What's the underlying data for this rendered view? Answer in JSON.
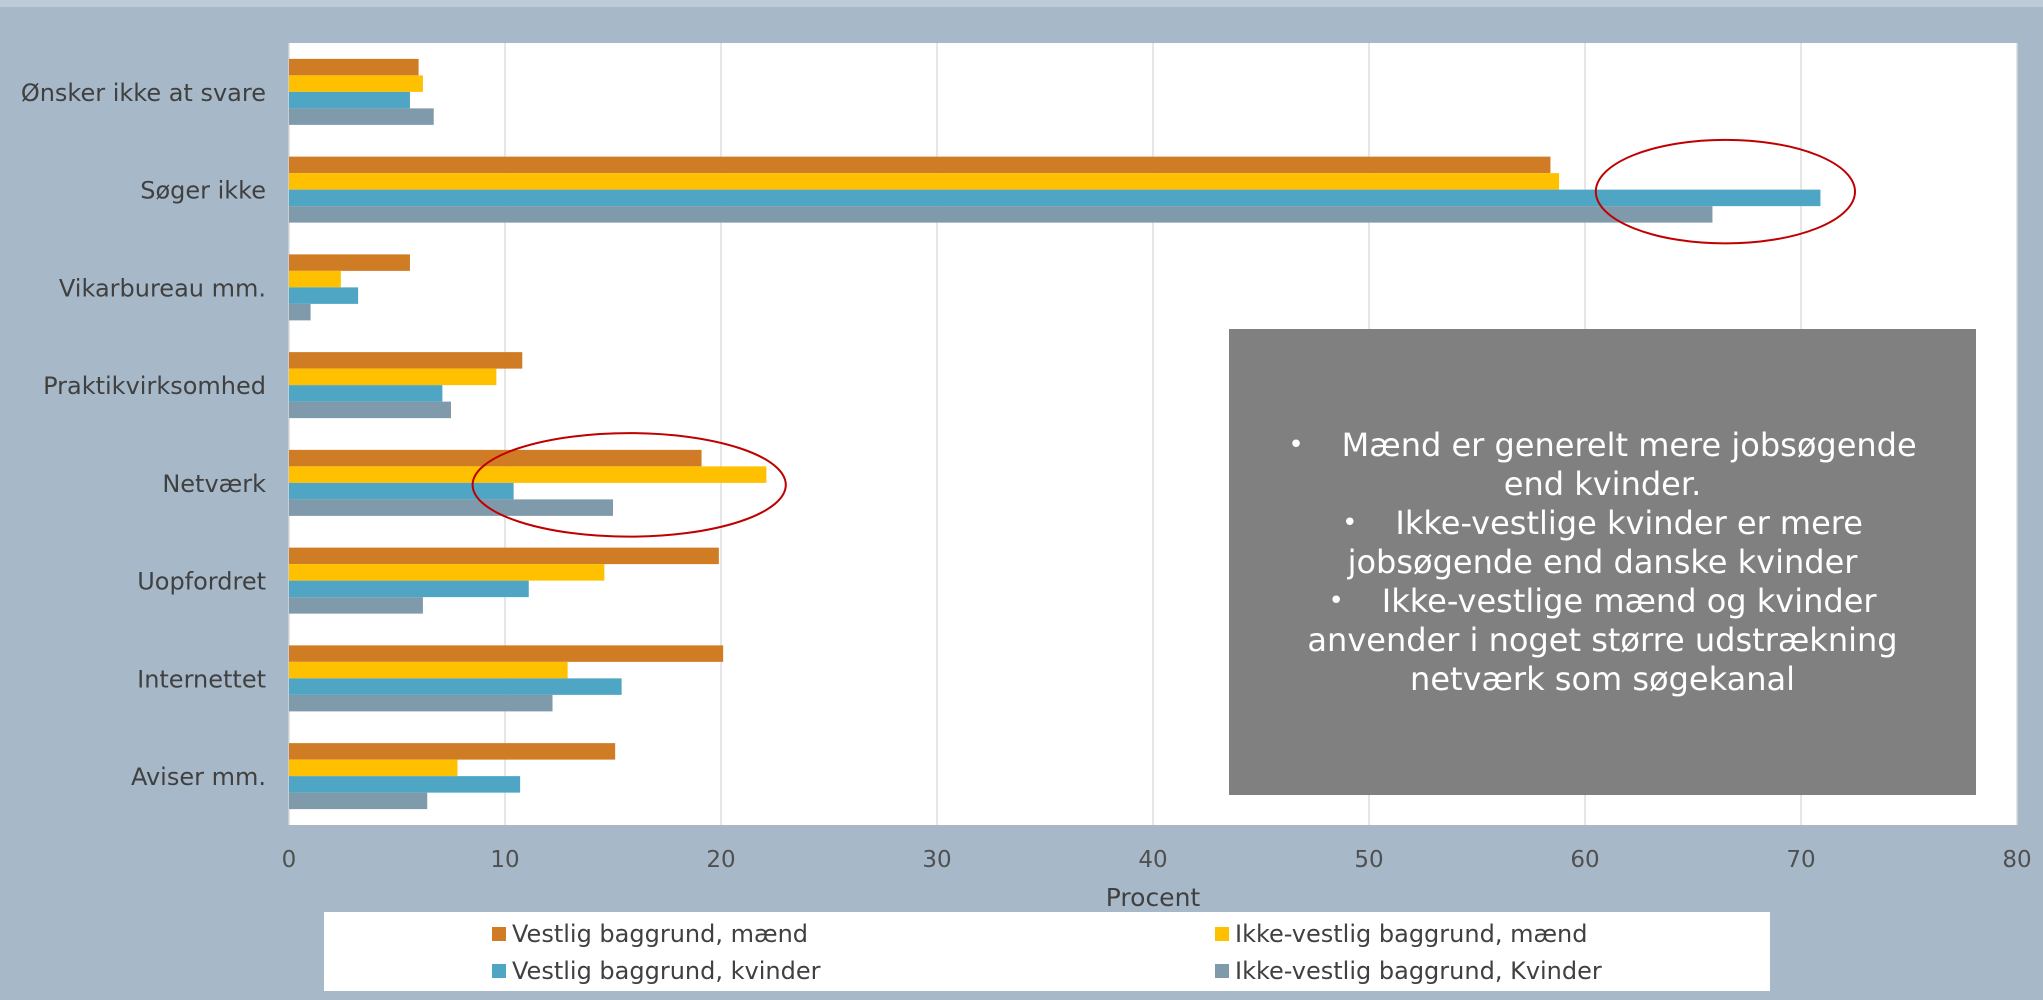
{
  "chart_data": {
    "type": "bar",
    "orientation": "horizontal",
    "categories": [
      "Ønsker ikke at svare",
      "Søger ikke",
      "Vikarbureau mm.",
      "Praktikvirksomhed",
      "Netværk",
      "Uopfordret",
      "Internettet",
      "Aviser mm."
    ],
    "series": [
      {
        "name": "Vestlig baggrund, mænd",
        "color": "#d07c24",
        "values": [
          6.0,
          58.4,
          5.6,
          10.8,
          19.1,
          19.9,
          20.1,
          15.1
        ]
      },
      {
        "name": "Ikke-vestlig baggrund, mænd",
        "color": "#ffc000",
        "values": [
          6.2,
          58.8,
          2.4,
          9.6,
          22.1,
          14.6,
          12.9,
          7.8
        ]
      },
      {
        "name": "Vestlig baggrund, kvinder",
        "color": "#4ea6c4",
        "values": [
          5.6,
          70.9,
          3.2,
          7.1,
          10.4,
          11.1,
          15.4,
          10.7
        ]
      },
      {
        "name": "Ikke-vestlig baggrund, Kvinder",
        "color": "#7f9aab",
        "values": [
          6.7,
          65.9,
          1.0,
          7.5,
          15.0,
          6.2,
          12.2,
          6.4
        ]
      }
    ],
    "x_ticks": [
      "0",
      "10",
      "20",
      "30",
      "40",
      "50",
      "60",
      "70",
      "80"
    ],
    "xlim": [
      0,
      80
    ],
    "xlabel": "Procent",
    "grid": true,
    "legend_position": "bottom",
    "annotations": {
      "ellipses": [
        {
          "target": "Søger ikke",
          "x_range": [
            60.5,
            72.5
          ],
          "color": "#c00000"
        },
        {
          "target": "Netværk",
          "x_range": [
            8.5,
            23.0
          ],
          "color": "#c00000"
        }
      ],
      "callout": {
        "lines": [
          "Mænd er generelt mere jobsøgende end kvinder.",
          "Ikke-vestlige kvinder er mere jobsøgende end danske kvinder",
          "Ikke-vestlige mænd og kvinder anvender i noget større udstrækning netværk som søgekanal"
        ],
        "background": "#808080"
      }
    }
  }
}
